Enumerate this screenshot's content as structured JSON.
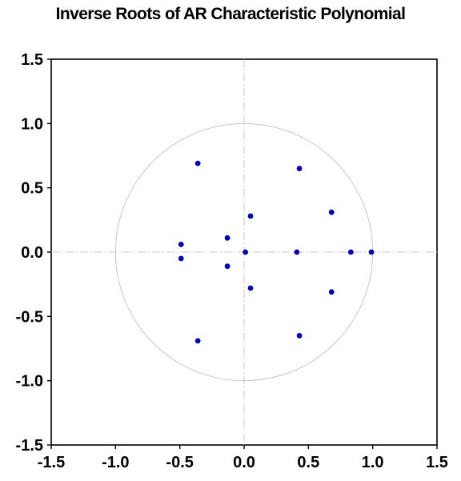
{
  "chart_data": {
    "type": "scatter",
    "title": "Inverse Roots of AR Characteristic Polynomial",
    "xlabel": "",
    "ylabel": "",
    "xlim": [
      -1.5,
      1.5
    ],
    "ylim": [
      -1.5,
      1.5
    ],
    "x_ticks": [
      "-1.5",
      "-1.0",
      "-0.5",
      "0.0",
      "0.5",
      "1.0",
      "1.5"
    ],
    "y_ticks": [
      "1.5",
      "1.0",
      "0.5",
      "0.0",
      "-0.5",
      "-1.0",
      "-1.5"
    ],
    "unit_circle": true,
    "zero_reference_lines": true,
    "legend": "none",
    "marker_color": "#0000aa",
    "circle_color": "#c8c8c8",
    "reference_line_color": "#c8c8c8",
    "points": [
      {
        "x": -0.36,
        "y": 0.69
      },
      {
        "x": -0.36,
        "y": -0.69
      },
      {
        "x": 0.43,
        "y": 0.65
      },
      {
        "x": 0.43,
        "y": -0.65
      },
      {
        "x": 0.68,
        "y": 0.31
      },
      {
        "x": 0.68,
        "y": -0.31
      },
      {
        "x": 0.05,
        "y": 0.28
      },
      {
        "x": 0.05,
        "y": -0.28
      },
      {
        "x": -0.13,
        "y": 0.11
      },
      {
        "x": -0.13,
        "y": -0.11
      },
      {
        "x": -0.49,
        "y": 0.06
      },
      {
        "x": -0.49,
        "y": -0.05
      },
      {
        "x": 0.01,
        "y": 0.0
      },
      {
        "x": 0.41,
        "y": 0.0
      },
      {
        "x": 0.83,
        "y": 0.0
      },
      {
        "x": 0.99,
        "y": 0.0
      }
    ]
  }
}
